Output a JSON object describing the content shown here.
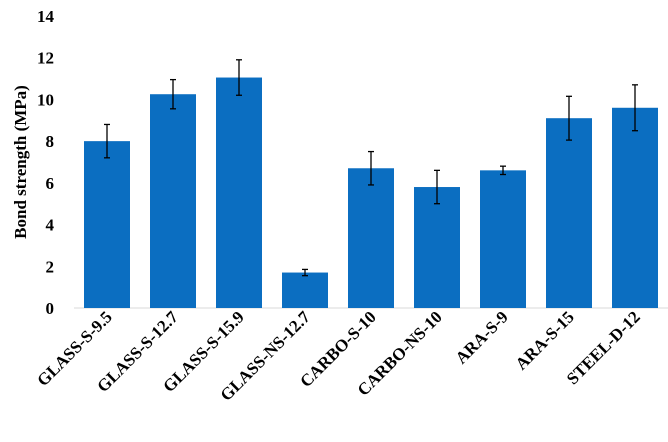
{
  "chart_data": {
    "type": "bar",
    "title": "",
    "xlabel": "",
    "ylabel": "Bond strength (MPa)",
    "ylim": [
      0,
      14
    ],
    "yticks": [
      0,
      2,
      4,
      6,
      8,
      10,
      12,
      14
    ],
    "grid": false,
    "legend": "none",
    "bar_color": "#0B6EC1",
    "error_color": "#000000",
    "categories": [
      "GLASS-S-9.5",
      "GLASS-S-12.7",
      "GLASS-S-15.9",
      "GLASS-NS-12.7",
      "CARBO-S-10",
      "CARBO-NS-10",
      "ARA-S-9",
      "ARA-S-15",
      "STEEL-D-12"
    ],
    "values": [
      8.0,
      10.25,
      11.05,
      1.7,
      6.7,
      5.8,
      6.6,
      9.1,
      9.6
    ],
    "errors": [
      0.8,
      0.7,
      0.85,
      0.15,
      0.8,
      0.8,
      0.2,
      1.05,
      1.1
    ]
  }
}
